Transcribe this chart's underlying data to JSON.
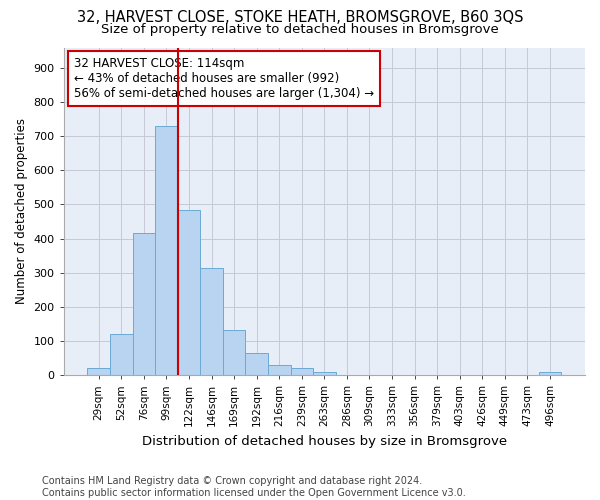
{
  "title": "32, HARVEST CLOSE, STOKE HEATH, BROMSGROVE, B60 3QS",
  "subtitle": "Size of property relative to detached houses in Bromsgrove",
  "xlabel": "Distribution of detached houses by size in Bromsgrove",
  "ylabel": "Number of detached properties",
  "bar_color": "#b8d4f0",
  "bar_edge_color": "#6aaad4",
  "background_color": "#e8eef8",
  "grid_color": "#c8c8d8",
  "categories": [
    "29sqm",
    "52sqm",
    "76sqm",
    "99sqm",
    "122sqm",
    "146sqm",
    "169sqm",
    "192sqm",
    "216sqm",
    "239sqm",
    "263sqm",
    "286sqm",
    "309sqm",
    "333sqm",
    "356sqm",
    "379sqm",
    "403sqm",
    "426sqm",
    "449sqm",
    "473sqm",
    "496sqm"
  ],
  "values": [
    20,
    120,
    415,
    730,
    485,
    315,
    133,
    65,
    30,
    20,
    10,
    0,
    0,
    0,
    0,
    0,
    0,
    0,
    0,
    0,
    10
  ],
  "ylim": [
    0,
    960
  ],
  "yticks": [
    0,
    100,
    200,
    300,
    400,
    500,
    600,
    700,
    800,
    900
  ],
  "vline_x_idx": 3.5,
  "vline_color": "#cc0000",
  "annotation_text": "32 HARVEST CLOSE: 114sqm\n← 43% of detached houses are smaller (992)\n56% of semi-detached houses are larger (1,304) →",
  "annotation_box_color": "#ffffff",
  "annotation_box_edge": "#cc0000",
  "footer": "Contains HM Land Registry data © Crown copyright and database right 2024.\nContains public sector information licensed under the Open Government Licence v3.0.",
  "title_fontsize": 10.5,
  "subtitle_fontsize": 9.5,
  "annotation_fontsize": 8.5,
  "footer_fontsize": 7.0,
  "ylabel_fontsize": 8.5,
  "xlabel_fontsize": 9.5
}
